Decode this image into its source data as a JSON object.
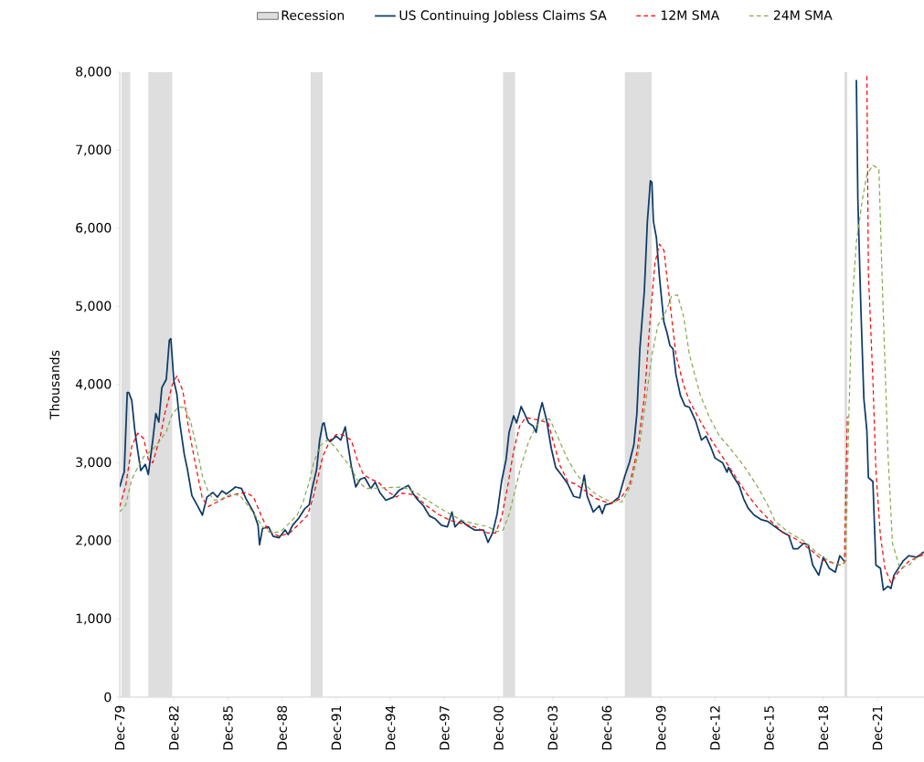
{
  "chart_data": {
    "type": "line",
    "ylabel": "Thousands",
    "xlim": [
      "1979-12",
      "2024-07"
    ],
    "ylim": [
      0,
      8000
    ],
    "xticks": [
      {
        "value": "1979-12",
        "label": "Dec-79"
      },
      {
        "value": "1982-12",
        "label": "Dec-82"
      },
      {
        "value": "1985-12",
        "label": "Dec-85"
      },
      {
        "value": "1988-12",
        "label": "Dec-88"
      },
      {
        "value": "1991-12",
        "label": "Dec-91"
      },
      {
        "value": "1994-12",
        "label": "Dec-94"
      },
      {
        "value": "1997-12",
        "label": "Dec-97"
      },
      {
        "value": "2000-12",
        "label": "Dec-00"
      },
      {
        "value": "2003-12",
        "label": "Dec-03"
      },
      {
        "value": "2006-12",
        "label": "Dec-06"
      },
      {
        "value": "2009-12",
        "label": "Dec-09"
      },
      {
        "value": "2012-12",
        "label": "Dec-12"
      },
      {
        "value": "2015-12",
        "label": "Dec-15"
      },
      {
        "value": "2018-12",
        "label": "Dec-18"
      },
      {
        "value": "2021-12",
        "label": "Dec-21"
      }
    ],
    "yticks": [
      0,
      {
        "value": 1000,
        "label": "1,000"
      },
      {
        "value": 2000,
        "label": "2,000"
      },
      {
        "value": 3000,
        "label": "3,000"
      },
      {
        "value": 4000,
        "label": "4,000"
      },
      {
        "value": 5000,
        "label": "5,000"
      },
      {
        "value": 6000,
        "label": "6,000"
      },
      {
        "value": 7000,
        "label": "7,000"
      },
      {
        "value": 8000,
        "label": "8,000"
      }
    ],
    "legend": "top",
    "bands": [
      {
        "axis": "x",
        "from": "1980-01",
        "to": "1980-07",
        "label": "Recession",
        "color": "#dedede"
      },
      {
        "axis": "x",
        "from": "1981-07",
        "to": "1982-11",
        "color": "#dedede"
      },
      {
        "axis": "x",
        "from": "1990-07",
        "to": "1991-03",
        "color": "#dedede"
      },
      {
        "axis": "x",
        "from": "2001-03",
        "to": "2001-11",
        "color": "#dedede"
      },
      {
        "axis": "x",
        "from": "2007-12",
        "to": "2009-06",
        "color": "#dedede"
      },
      {
        "axis": "x",
        "from": "2020-02",
        "to": "2020-04",
        "color": "#dedede"
      }
    ],
    "series": [
      {
        "name": "US Continuing Jobless Claims SA",
        "color": "#0e3b66",
        "line_style": "solid",
        "x": [
          "1979-12",
          "1980-02",
          "1980-03",
          "1980-05",
          "1980-06",
          "1980-08",
          "1980-10",
          "1980-12",
          "1981-02",
          "1981-05",
          "1981-07",
          "1981-10",
          "1981-12",
          "1982-02",
          "1982-04",
          "1982-07",
          "1982-09",
          "1982-10",
          "1982-12",
          "1983-02",
          "1983-04",
          "1983-07",
          "1983-09",
          "1983-12",
          "1984-04",
          "1984-07",
          "1984-10",
          "1985-02",
          "1985-05",
          "1985-08",
          "1985-11",
          "1986-05",
          "1986-09",
          "1986-12",
          "1987-05",
          "1987-08",
          "1987-09",
          "1987-11",
          "1988-03",
          "1988-06",
          "1988-10",
          "1989-02",
          "1989-04",
          "1989-07",
          "1989-11",
          "1990-03",
          "1990-06",
          "1990-08",
          "1990-11",
          "1991-01",
          "1991-03",
          "1991-04",
          "1991-06",
          "1991-08",
          "1991-12",
          "1992-03",
          "1992-06",
          "1992-08",
          "1992-10",
          "1993-01",
          "1993-04",
          "1993-07",
          "1993-11",
          "1994-02",
          "1994-05",
          "1994-09",
          "1995-02",
          "1995-06",
          "1995-10",
          "1995-12",
          "1996-03",
          "1996-06",
          "1996-10",
          "1997-02",
          "1997-06",
          "1997-10",
          "1998-02",
          "1998-05",
          "1998-07",
          "1998-11",
          "1999-03",
          "1999-08",
          "2000-02",
          "2000-05",
          "2000-08",
          "2000-11",
          "2001-02",
          "2001-05",
          "2001-07",
          "2001-10",
          "2001-12",
          "2002-03",
          "2002-05",
          "2002-08",
          "2002-11",
          "2003-01",
          "2003-03",
          "2003-05",
          "2003-08",
          "2003-11",
          "2004-02",
          "2004-06",
          "2004-10",
          "2005-02",
          "2005-06",
          "2005-09",
          "2005-11",
          "2006-03",
          "2006-07",
          "2006-09",
          "2006-11",
          "2007-03",
          "2007-08",
          "2007-12",
          "2008-03",
          "2008-06",
          "2008-08",
          "2008-10",
          "2009-01",
          "2009-03",
          "2009-05",
          "2009-06",
          "2009-07",
          "2009-09",
          "2009-11",
          "2010-02",
          "2010-04",
          "2010-06",
          "2010-08",
          "2010-10",
          "2011-01",
          "2011-04",
          "2011-07",
          "2011-11",
          "2012-03",
          "2012-06",
          "2012-09",
          "2012-12",
          "2013-05",
          "2013-08",
          "2013-09",
          "2013-12",
          "2014-04",
          "2014-07",
          "2014-10",
          "2015-02",
          "2015-07",
          "2015-11",
          "2016-04",
          "2016-09",
          "2017-01",
          "2017-04",
          "2017-07",
          "2017-11",
          "2018-02",
          "2018-05",
          "2018-09",
          "2018-12",
          "2019-04",
          "2019-08",
          "2019-11",
          "2020-02",
          "2020-05",
          "2020-10",
          "2020-11",
          "2021-01",
          "2021-03",
          "2021-05",
          "2021-06",
          "2021-09",
          "2021-11",
          "2022-02",
          "2022-04",
          "2022-07",
          "2022-09",
          "2022-11",
          "2023-05",
          "2023-09",
          "2024-02",
          "2024-07"
        ],
        "values": [
          2690,
          2830,
          2880,
          3900,
          3900,
          3800,
          3420,
          3150,
          2900,
          2980,
          2850,
          3290,
          3630,
          3520,
          3960,
          4070,
          4570,
          4590,
          4050,
          3880,
          3500,
          3100,
          2920,
          2580,
          2440,
          2330,
          2560,
          2620,
          2560,
          2640,
          2600,
          2690,
          2670,
          2540,
          2370,
          2200,
          1950,
          2160,
          2180,
          2060,
          2040,
          2140,
          2080,
          2200,
          2290,
          2410,
          2460,
          2670,
          2920,
          3290,
          3500,
          3510,
          3310,
          3270,
          3340,
          3290,
          3460,
          3210,
          2960,
          2690,
          2790,
          2810,
          2670,
          2750,
          2620,
          2520,
          2560,
          2650,
          2690,
          2710,
          2610,
          2530,
          2450,
          2320,
          2280,
          2200,
          2180,
          2370,
          2180,
          2260,
          2200,
          2140,
          2140,
          1980,
          2100,
          2340,
          2760,
          3040,
          3390,
          3600,
          3510,
          3720,
          3640,
          3510,
          3470,
          3390,
          3620,
          3770,
          3540,
          3190,
          2940,
          2840,
          2730,
          2570,
          2550,
          2840,
          2570,
          2370,
          2450,
          2350,
          2460,
          2480,
          2560,
          2830,
          3000,
          3230,
          3630,
          4460,
          5210,
          6090,
          6610,
          6590,
          6090,
          5880,
          5380,
          4800,
          4670,
          4500,
          4460,
          4130,
          3860,
          3730,
          3710,
          3540,
          3290,
          3340,
          3210,
          3060,
          3000,
          2880,
          2940,
          2830,
          2710,
          2540,
          2420,
          2330,
          2270,
          2250,
          2180,
          2110,
          2070,
          1900,
          1900,
          1970,
          1950,
          1690,
          1560,
          1790,
          1650,
          1600,
          1810,
          1740,
          null,
          7900,
          6370,
          4980,
          3820,
          3410,
          2810,
          2760,
          1690,
          1650,
          1370,
          1420,
          1390,
          1560,
          1740,
          1810,
          1790,
          1860
        ]
      },
      {
        "name": "12M SMA",
        "color": "#ff0000",
        "line_style": "dashed",
        "x": [
          "1979-12",
          "1980-04",
          "1980-08",
          "1980-12",
          "1981-04",
          "1981-07",
          "1981-10",
          "1982-03",
          "1982-06",
          "1982-11",
          "1983-02",
          "1983-06",
          "1983-10",
          "1984-03",
          "1984-07",
          "1984-11",
          "1985-05",
          "1985-11",
          "1986-06",
          "1986-12",
          "1987-05",
          "1987-10",
          "1988-03",
          "1988-10",
          "1989-05",
          "1989-11",
          "1990-05",
          "1990-09",
          "1990-12",
          "1991-03",
          "1991-08",
          "1991-12",
          "1992-04",
          "1992-10",
          "1993-02",
          "1993-06",
          "1993-11",
          "1994-04",
          "1994-11",
          "1995-04",
          "1995-08",
          "1996-04",
          "1996-12",
          "1997-08",
          "1998-04",
          "1998-12",
          "1999-08",
          "2000-05",
          "2000-10",
          "2001-02",
          "2001-06",
          "2001-10",
          "2002-02",
          "2002-06",
          "2002-11",
          "2003-04",
          "2003-09",
          "2004-01",
          "2004-05",
          "2004-10",
          "2005-03",
          "2005-09",
          "2006-04",
          "2006-09",
          "2007-03",
          "2007-09",
          "2008-03",
          "2008-08",
          "2009-01",
          "2009-05",
          "2009-08",
          "2009-11",
          "2010-02",
          "2010-04",
          "2010-07",
          "2010-10",
          "2011-03",
          "2011-07",
          "2012-02",
          "2012-08",
          "2013-03",
          "2013-09",
          "2014-04",
          "2014-10",
          "2015-05",
          "2015-10",
          "2016-09",
          "2017-06",
          "2018-04",
          "2018-11",
          "2019-06",
          "2019-11",
          "2020-02",
          "2020-04",
          "2020-06",
          "2021-05",
          "2021-06",
          "2021-09",
          "2021-11",
          "2022-02",
          "2022-05",
          "2022-09",
          "2023-02",
          "2023-09",
          "2024-07"
        ],
        "values": [
          2440,
          2710,
          3210,
          3380,
          3310,
          3040,
          3000,
          3340,
          3630,
          4000,
          4110,
          3920,
          3420,
          2920,
          2540,
          2440,
          2500,
          2560,
          2600,
          2620,
          2560,
          2330,
          2120,
          2060,
          2100,
          2210,
          2330,
          2580,
          2830,
          3080,
          3290,
          3360,
          3360,
          3290,
          3040,
          2850,
          2790,
          2750,
          2620,
          2560,
          2610,
          2590,
          2450,
          2340,
          2260,
          2220,
          2180,
          2100,
          2100,
          2300,
          2690,
          3150,
          3470,
          3580,
          3560,
          3540,
          3510,
          3230,
          2960,
          2760,
          2730,
          2650,
          2550,
          2510,
          2480,
          2540,
          2710,
          3130,
          3840,
          4880,
          5550,
          5800,
          5720,
          5380,
          4880,
          4380,
          4000,
          3790,
          3540,
          3340,
          3130,
          2960,
          2750,
          2580,
          2410,
          2310,
          2110,
          2020,
          1880,
          1760,
          1720,
          1690,
          1720,
          3590,
          null,
          7950,
          5440,
          4060,
          2900,
          2070,
          1650,
          1460,
          1600,
          1740,
          1830
        ]
      },
      {
        "name": "24M SMA",
        "color": "#86a94a",
        "line_style": "dashed",
        "x": [
          "1979-12",
          "1980-04",
          "1980-08",
          "1980-12",
          "1981-04",
          "1981-10",
          "1982-03",
          "1982-07",
          "1982-11",
          "1983-03",
          "1983-07",
          "1983-11",
          "1984-03",
          "1984-07",
          "1984-11",
          "1985-03",
          "1985-08",
          "1986-02",
          "1986-08",
          "1987-01",
          "1987-06",
          "1987-11",
          "1988-05",
          "1988-11",
          "1989-05",
          "1989-10",
          "1990-02",
          "1990-06",
          "1990-09",
          "1991-01",
          "1991-06",
          "1991-11",
          "1992-04",
          "1992-09",
          "1993-03",
          "1993-08",
          "1995-08",
          "1996-04",
          "1996-12",
          "1997-08",
          "1998-04",
          "1998-12",
          "1999-08",
          "2000-05",
          "2000-11",
          "2001-03",
          "2001-07",
          "2001-11",
          "2002-03",
          "2002-08",
          "2003-01",
          "2003-06",
          "2003-10",
          "2004-03",
          "2004-09",
          "2005-03",
          "2005-09",
          "2006-04",
          "2006-09",
          "2007-03",
          "2007-10",
          "2008-04",
          "2008-09",
          "2009-02",
          "2009-06",
          "2009-10",
          "2010-03",
          "2010-07",
          "2010-11",
          "2011-03",
          "2011-07",
          "2012-02",
          "2012-08",
          "2013-03",
          "2013-09",
          "2014-04",
          "2014-10",
          "2015-05",
          "2015-11",
          "2016-04",
          "2017-01",
          "2017-11",
          "2018-09",
          "2019-04",
          "2019-11",
          "2020-03",
          "2020-05",
          "2020-07",
          "2020-10",
          "2021-02",
          "2021-05",
          "2021-09",
          "2022-01",
          "2022-03",
          "2022-07",
          "2022-10",
          "2023-03",
          "2023-09",
          "2024-07"
        ],
        "values": [
          2370,
          2460,
          2790,
          2940,
          3080,
          3170,
          3290,
          3400,
          3630,
          3710,
          3710,
          3540,
          3210,
          2830,
          2620,
          2520,
          2540,
          2600,
          2580,
          2460,
          2330,
          2180,
          2100,
          2120,
          2230,
          2330,
          2500,
          2750,
          3000,
          3210,
          3290,
          3210,
          3080,
          2960,
          2750,
          2670,
          2690,
          2630,
          2530,
          2430,
          2340,
          2260,
          2220,
          2180,
          2120,
          2140,
          2340,
          2650,
          2960,
          3270,
          3470,
          3560,
          3560,
          3350,
          3080,
          2880,
          2730,
          2610,
          2550,
          2500,
          2500,
          2710,
          3130,
          3790,
          4380,
          4760,
          4920,
          5130,
          5150,
          4880,
          4380,
          3880,
          3590,
          3340,
          3210,
          3040,
          2880,
          2670,
          2460,
          2250,
          2110,
          2000,
          1830,
          1740,
          1690,
          1740,
          3590,
          4980,
          5820,
          6370,
          6690,
          6810,
          6760,
          5440,
          3130,
          1970,
          1650,
          1690,
          1880
        ]
      }
    ]
  }
}
